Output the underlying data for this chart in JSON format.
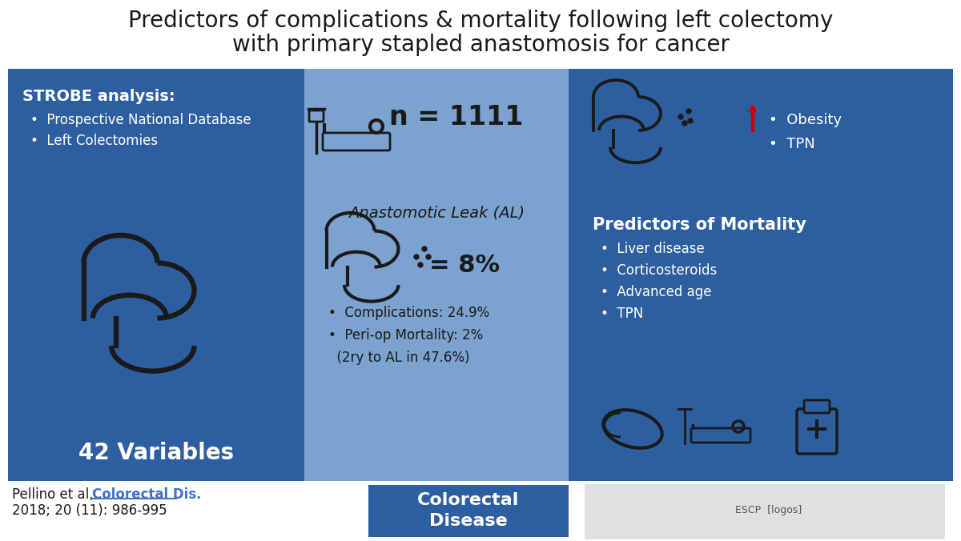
{
  "title_line1": "Predictors of complications & mortality following left colectomy",
  "title_line2": "with primary stapled anastomosis for cancer",
  "title_fontsize": 20,
  "title_color": "#1a1a1a",
  "bg_color": "#ffffff",
  "left_panel_color": "#2d5fa0",
  "center_panel_color": "#7ca3d0",
  "right_panel_color": "#2d5fa0",
  "footer_color": "#ffffff",
  "footer_center_color": "#2d5fa0",
  "left_header": "STROBE analysis:",
  "left_bullets": [
    "Prospective National Database",
    "Left Colectomies"
  ],
  "left_bottom": "42 Variables",
  "center_n": "n = 1111",
  "center_al_title": "Anastomotic Leak (AL)",
  "center_al_pct": "= 8%",
  "center_bullets": [
    "Complications: 24.9%",
    "Peri-op Mortality: 2%",
    "(2ry to AL in 47.6%)"
  ],
  "right_top_bullets": [
    "Obesity",
    "TPN"
  ],
  "right_mortality_title": "Predictors of Mortality",
  "right_mortality_bullets": [
    "Liver disease",
    "Corticosteroids",
    "Advanced age",
    "TPN"
  ],
  "footer_left_text1": "Pellino et al, ",
  "footer_left_link": "Colorectal Dis.",
  "footer_left_text2": "2018; 20 (11): 986-995",
  "footer_center_text": "Colorectal\nDisease",
  "text_color_light": "#ffffff",
  "text_color_dark": "#1a1a1a",
  "link_color": "#4472c4",
  "red_arrow_color": "#cc0000"
}
